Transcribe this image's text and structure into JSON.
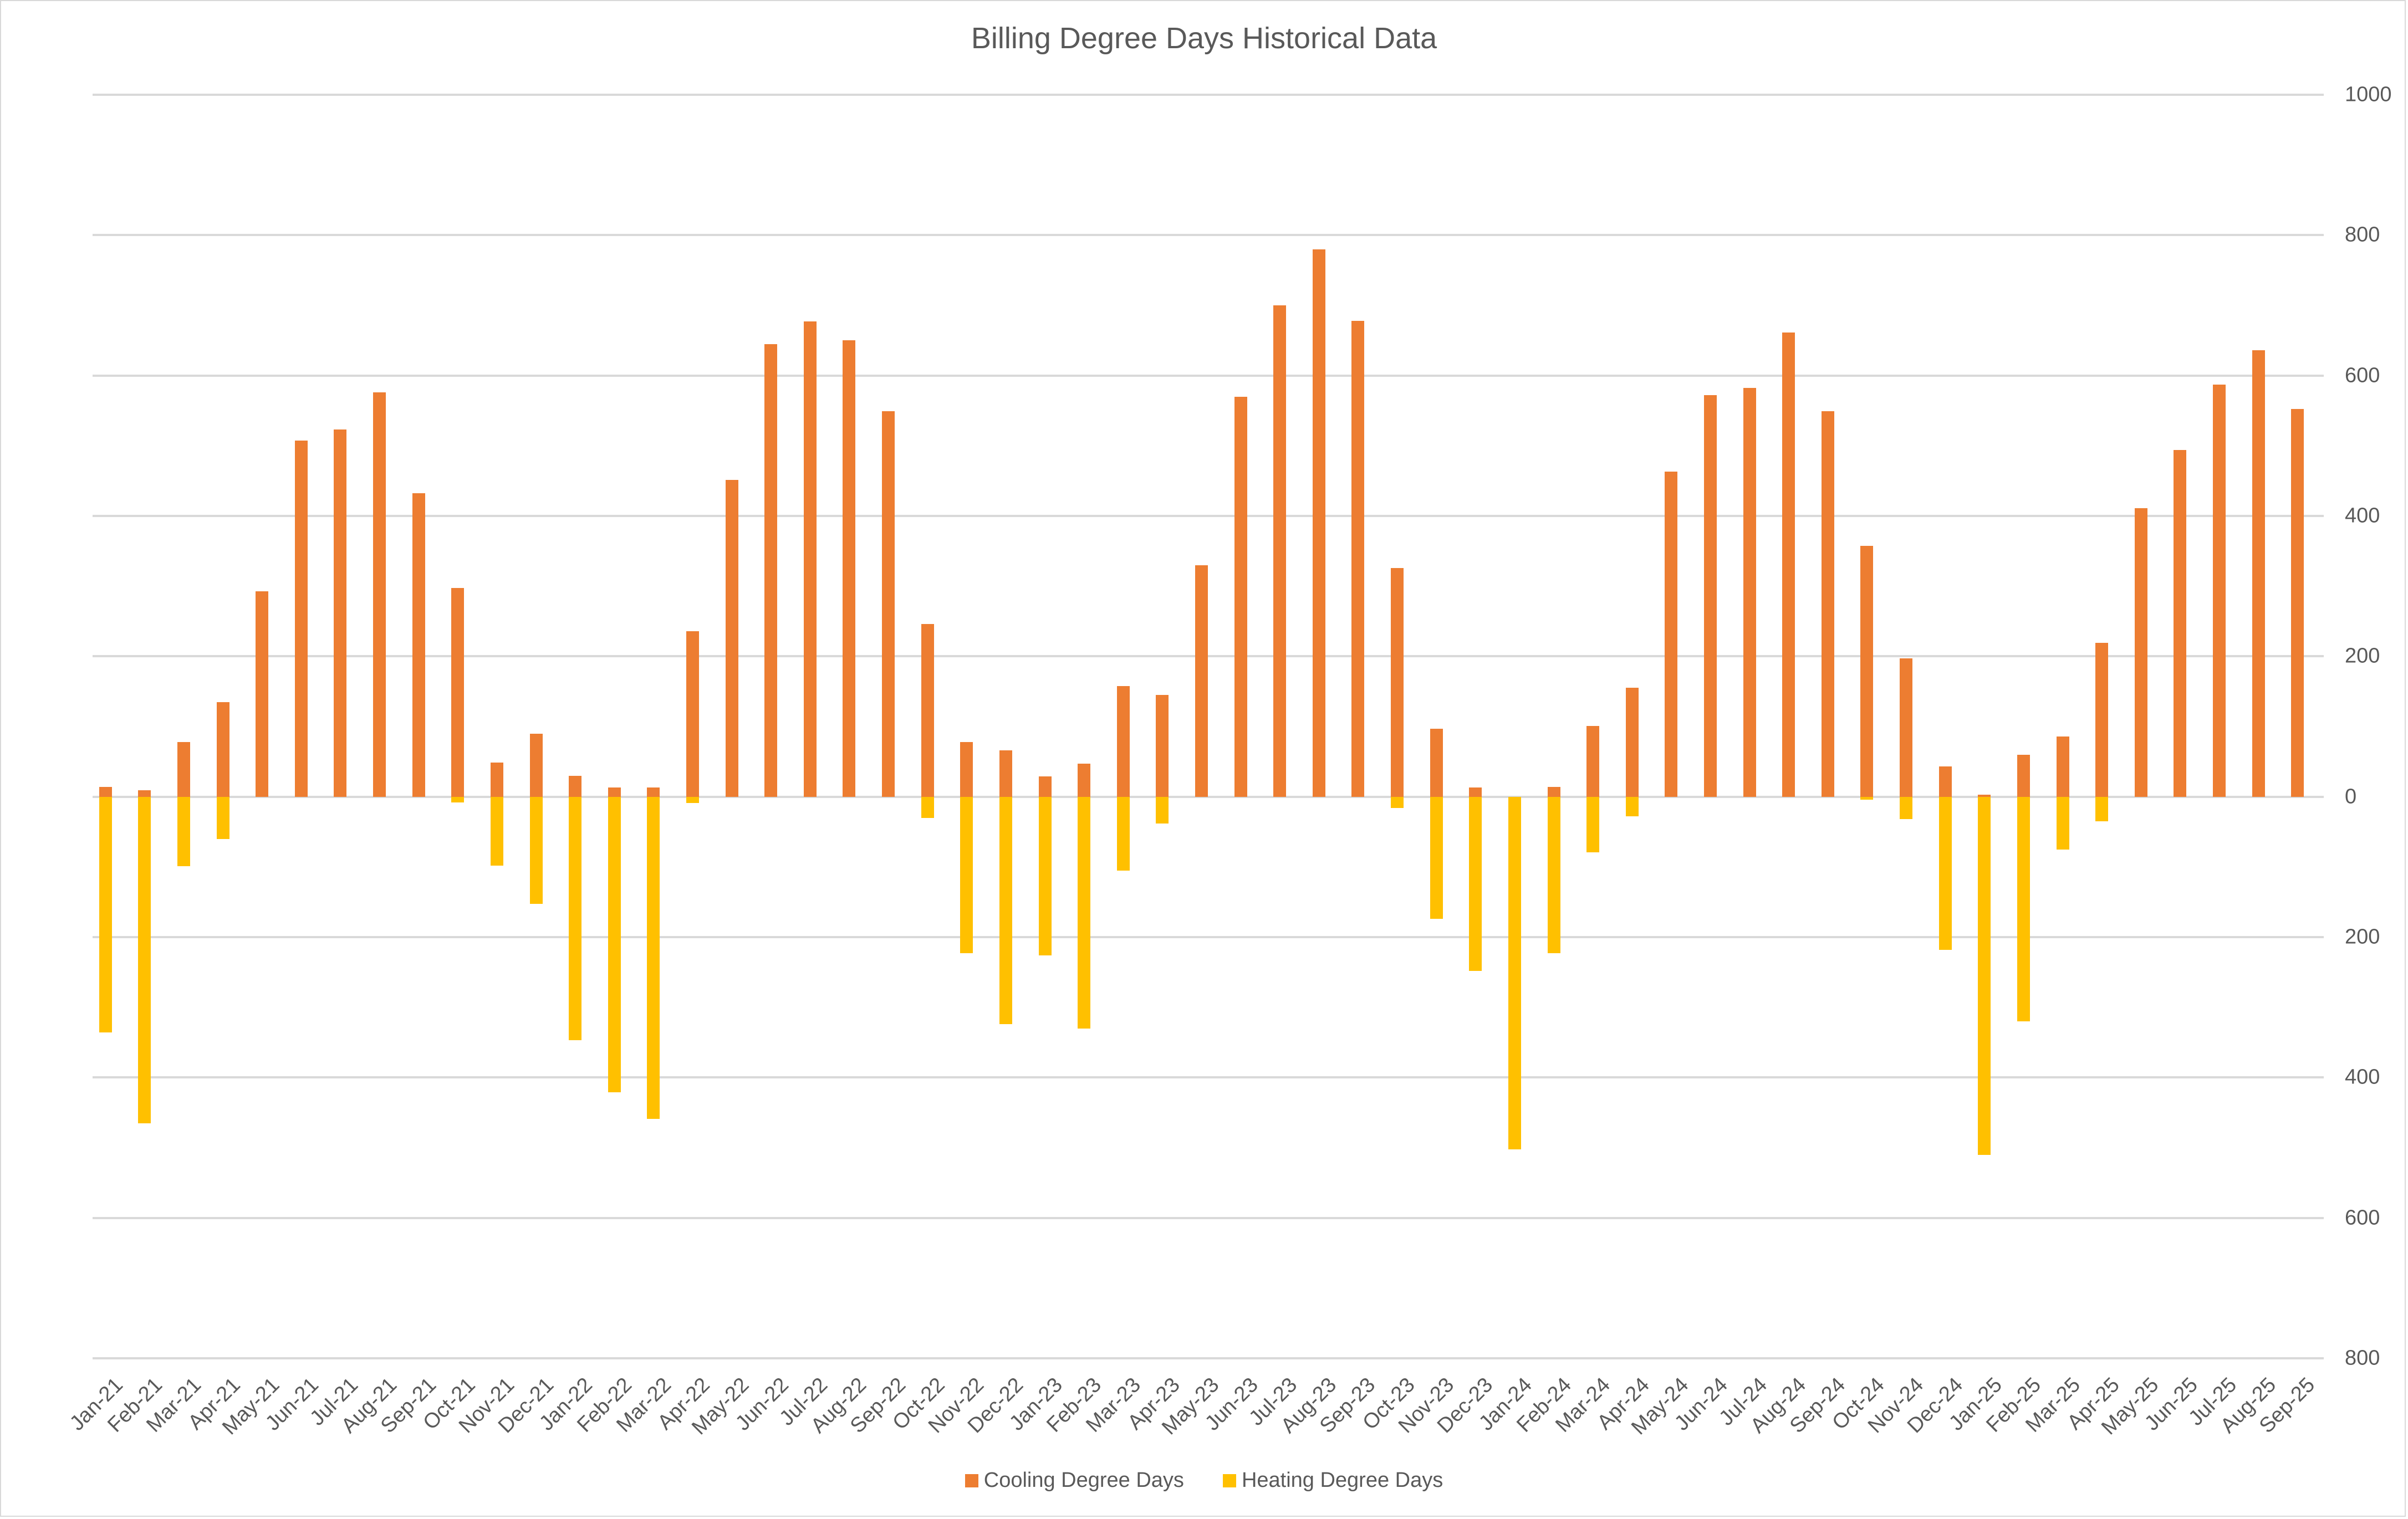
{
  "chart_data": {
    "type": "bar",
    "title": "Billing Degree Days Historical Data",
    "xlabel": "",
    "ylabel": "",
    "ylim": [
      -800,
      1000
    ],
    "y_axis_position": "right",
    "y_ticks": [
      1000,
      800,
      600,
      400,
      200,
      0,
      -200,
      -400,
      -600,
      -800
    ],
    "y_tick_labels": [
      "1000",
      "800",
      "600",
      "400",
      "200",
      "0",
      "200",
      "400",
      "600",
      "800"
    ],
    "grid": true,
    "legend_position": "bottom",
    "categories": [
      "Jan-21",
      "Feb-21",
      "Mar-21",
      "Apr-21",
      "May-21",
      "Jun-21",
      "Jul-21",
      "Aug-21",
      "Sep-21",
      "Oct-21",
      "Nov-21",
      "Dec-21",
      "Jan-22",
      "Feb-22",
      "Mar-22",
      "Apr-22",
      "May-22",
      "Jun-22",
      "Jul-22",
      "Aug-22",
      "Sep-22",
      "Oct-22",
      "Nov-22",
      "Dec-22",
      "Jan-23",
      "Feb-23",
      "Mar-23",
      "Apr-23",
      "May-23",
      "Jun-23",
      "Jul-23",
      "Aug-23",
      "Sep-23",
      "Oct-23",
      "Nov-23",
      "Dec-23",
      "Jan-24",
      "Feb-24",
      "Mar-24",
      "Apr-24",
      "May-24",
      "Jun-24",
      "Jul-24",
      "Aug-24",
      "Sep-24",
      "Oct-24",
      "Nov-24",
      "Dec-24",
      "Jan-25",
      "Feb-25",
      "Mar-25",
      "Apr-25",
      "May-25",
      "Jun-25",
      "Jul-25",
      "Aug-25",
      "Sep-25"
    ],
    "series": [
      {
        "name": "Cooling Degree Days",
        "color": "#ed7d31",
        "values": [
          14,
          9,
          78,
          135,
          293,
          507,
          523,
          576,
          432,
          297,
          49,
          90,
          30,
          13,
          13,
          236,
          451,
          645,
          677,
          650,
          549,
          246,
          78,
          66,
          29,
          47,
          158,
          145,
          330,
          570,
          700,
          780,
          678,
          326,
          97,
          13,
          0,
          14,
          101,
          155,
          463,
          572,
          582,
          661,
          549,
          357,
          197,
          43,
          3,
          60,
          86,
          219,
          411,
          494,
          587,
          636,
          552
        ]
      },
      {
        "name": "Heating Degree Days",
        "color": "#ffc000",
        "values": [
          -336,
          -465,
          -99,
          -60,
          0,
          0,
          0,
          0,
          0,
          -8,
          -98,
          -153,
          -347,
          -421,
          -459,
          -9,
          0,
          0,
          0,
          0,
          0,
          -30,
          -223,
          -324,
          -226,
          -330,
          -105,
          -38,
          0,
          0,
          0,
          0,
          0,
          -16,
          -174,
          -248,
          -502,
          -223,
          -79,
          -28,
          0,
          0,
          0,
          0,
          0,
          -4,
          -32,
          -218,
          -510,
          -320,
          -75,
          -35,
          0,
          0,
          0,
          0,
          0
        ]
      }
    ]
  },
  "legend": {
    "items": [
      {
        "label": "Cooling Degree Days",
        "color": "#ed7d31"
      },
      {
        "label": "Heating Degree Days",
        "color": "#ffc000"
      }
    ]
  }
}
